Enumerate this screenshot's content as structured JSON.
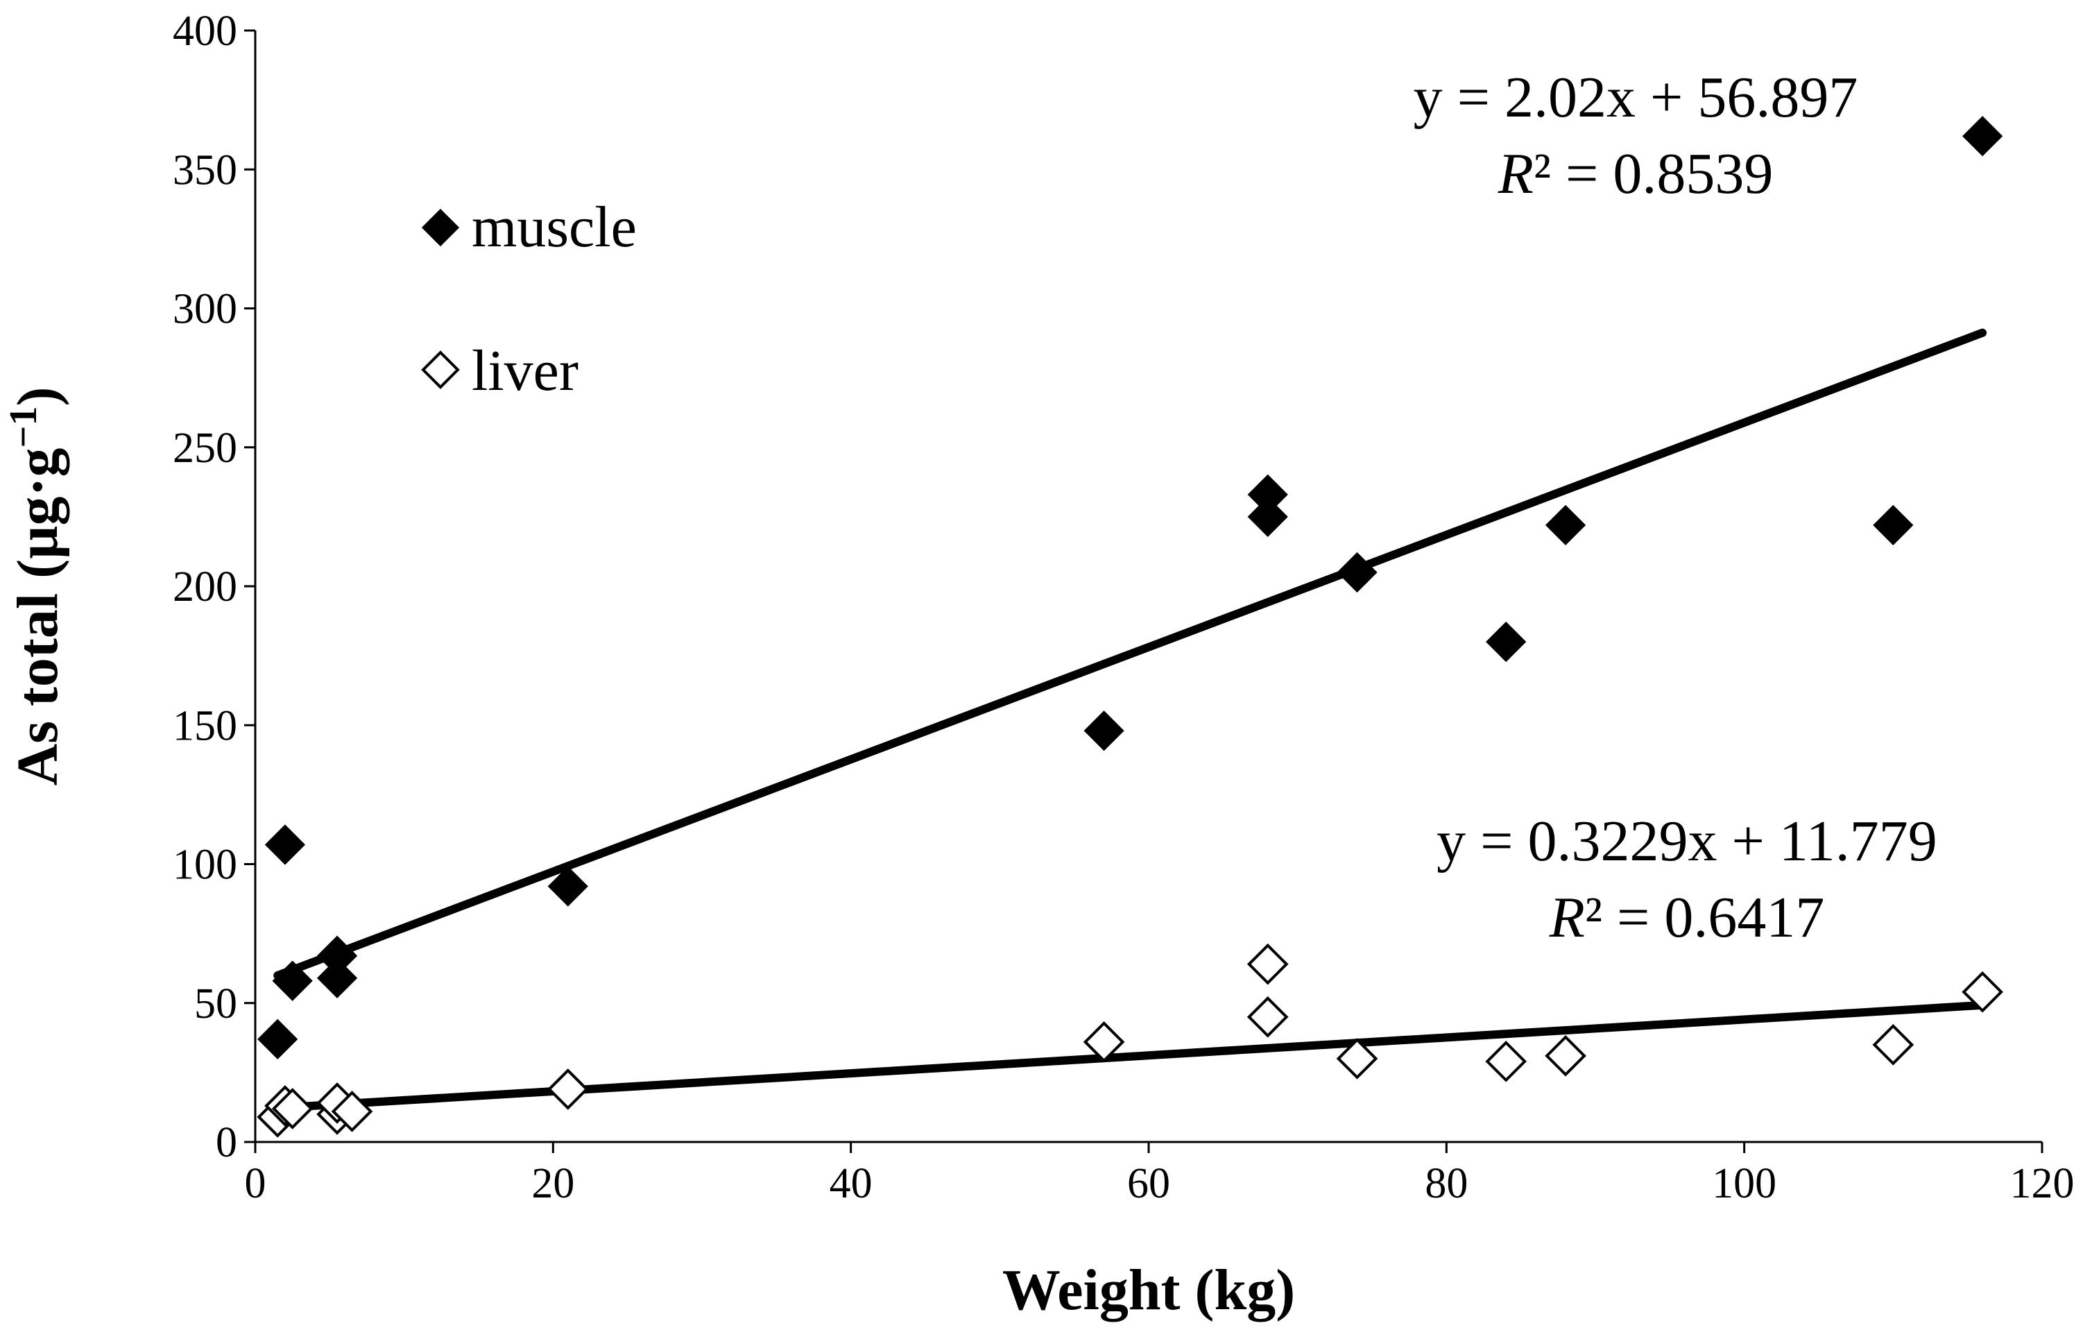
{
  "chart_data": {
    "type": "scatter",
    "xlabel": "Weight (kg)",
    "ylabel_main": "As total (µg·g",
    "ylabel_sup": "−1",
    "ylabel_close": ")",
    "xlim": [
      0,
      120
    ],
    "ylim": [
      0,
      400
    ],
    "xticks": [
      0,
      20,
      40,
      60,
      80,
      100,
      120
    ],
    "yticks": [
      0,
      50,
      100,
      150,
      200,
      250,
      300,
      350,
      400
    ],
    "grid": false,
    "legend_position": "top-left",
    "series": [
      {
        "name": "muscle",
        "marker": "filled-diamond",
        "color": "#000000",
        "x": [
          1.5,
          2,
          2.5,
          5.5,
          5.5,
          21,
          57,
          68,
          68,
          74,
          84,
          88,
          110,
          116
        ],
        "y": [
          37,
          107,
          58,
          59,
          67,
          92,
          148,
          225,
          233,
          205,
          180,
          222,
          222,
          362
        ],
        "trend": {
          "slope": 2.02,
          "intercept": 56.897,
          "x_range": [
            1.5,
            116
          ]
        },
        "equation": "y = 2.02x + 56.897",
        "r2_label": "R",
        "r2_value": "² = 0.8539"
      },
      {
        "name": "liver",
        "marker": "open-diamond",
        "color": "#000000",
        "x": [
          1.5,
          2,
          2.5,
          5.5,
          5.5,
          6.5,
          21,
          57,
          68,
          68,
          74,
          84,
          88,
          110,
          116
        ],
        "y": [
          9,
          13,
          12,
          10,
          14,
          11,
          19,
          36,
          64,
          45,
          30,
          29,
          31,
          35,
          54
        ],
        "trend": {
          "slope": 0.3229,
          "intercept": 11.779,
          "x_range": [
            1.5,
            116
          ]
        },
        "equation": "y = 0.3229x + 11.779",
        "r2_label": "R",
        "r2_value": "² = 0.6417"
      }
    ]
  }
}
